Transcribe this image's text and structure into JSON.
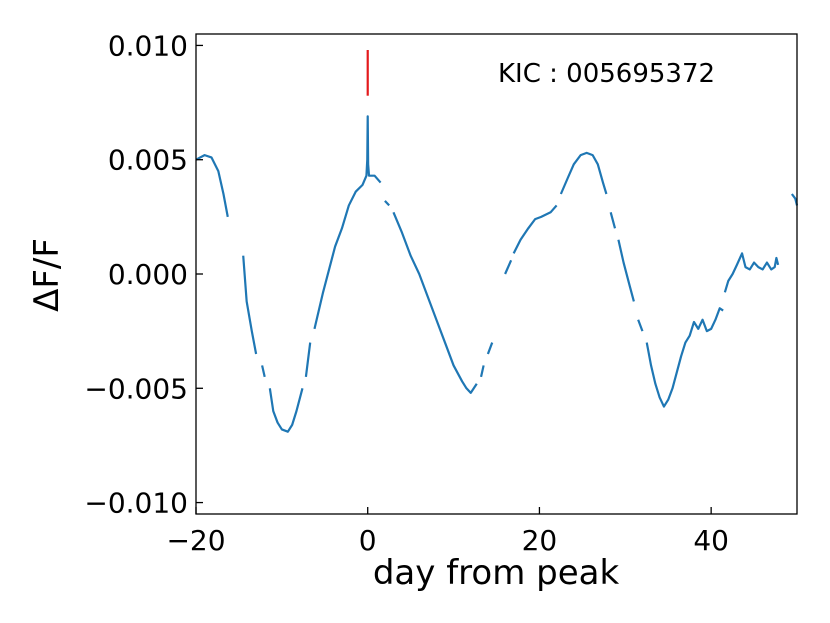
{
  "chart_data": {
    "type": "line",
    "xlabel": "day from peak",
    "ylabel": "ΔF/F",
    "xlim": [
      -20,
      50
    ],
    "ylim": [
      -0.0105,
      0.0105
    ],
    "xticks": [
      -20,
      0,
      20,
      40
    ],
    "xtick_labels": [
      "−20",
      "0",
      "20",
      "40"
    ],
    "yticks": [
      -0.01,
      -0.005,
      0.0,
      0.005,
      0.01
    ],
    "ytick_labels": [
      "−0.010",
      "−0.005",
      "0.000",
      "0.005",
      "0.010"
    ],
    "annotation": "KIC : 005695372",
    "marker": {
      "x": 0,
      "y_from": 0.0078,
      "y_to": 0.0098,
      "color": "#e41a1c"
    },
    "series": [
      {
        "color": "#1f77b4",
        "segments": [
          [
            [
              -20.0,
              0.005
            ],
            [
              -19.0,
              0.0052
            ],
            [
              -18.2,
              0.0051
            ],
            [
              -17.4,
              0.0045
            ],
            [
              -16.8,
              0.0035
            ],
            [
              -16.3,
              0.0025
            ]
          ],
          [
            [
              -14.5,
              0.0008
            ],
            [
              -14.1,
              -0.0012
            ],
            [
              -13.5,
              -0.0025
            ],
            [
              -13.0,
              -0.0035
            ]
          ],
          [
            [
              -12.3,
              -0.004
            ],
            [
              -12.0,
              -0.0045
            ]
          ],
          [
            [
              -11.4,
              -0.005
            ],
            [
              -11.0,
              -0.006
            ],
            [
              -10.5,
              -0.0065
            ],
            [
              -10.0,
              -0.0068
            ],
            [
              -9.3,
              -0.0069
            ],
            [
              -8.8,
              -0.0066
            ],
            [
              -8.3,
              -0.006
            ],
            [
              -7.6,
              -0.005
            ]
          ],
          [
            [
              -7.2,
              -0.0045
            ],
            [
              -6.7,
              -0.003
            ]
          ],
          [
            [
              -6.2,
              -0.0024
            ],
            [
              -5.2,
              -0.0008
            ],
            [
              -4.5,
              0.0002
            ],
            [
              -3.8,
              0.0012
            ],
            [
              -3.0,
              0.002
            ],
            [
              -2.2,
              0.003
            ],
            [
              -1.4,
              0.0036
            ],
            [
              -0.6,
              0.0039
            ],
            [
              -0.15,
              0.0043
            ],
            [
              -0.05,
              0.005
            ],
            [
              0.0,
              0.0069
            ],
            [
              0.05,
              0.0048
            ],
            [
              0.15,
              0.0043
            ],
            [
              0.8,
              0.0043
            ],
            [
              1.5,
              0.004
            ]
          ],
          [
            [
              2.0,
              0.0032
            ],
            [
              2.5,
              0.003
            ]
          ],
          [
            [
              3.0,
              0.0027
            ],
            [
              4.0,
              0.0018
            ],
            [
              5.0,
              0.0008
            ],
            [
              6.0,
              0.0
            ],
            [
              7.0,
              -0.001
            ],
            [
              8.0,
              -0.002
            ],
            [
              9.0,
              -0.003
            ],
            [
              10.0,
              -0.004
            ],
            [
              11.0,
              -0.0047
            ],
            [
              11.5,
              -0.005
            ],
            [
              12.0,
              -0.0052
            ],
            [
              12.7,
              -0.0048
            ]
          ],
          [
            [
              13.2,
              -0.0045
            ],
            [
              13.5,
              -0.004
            ]
          ],
          [
            [
              14.0,
              -0.0035
            ],
            [
              14.5,
              -0.003
            ]
          ],
          [
            [
              16.0,
              0.0
            ],
            [
              16.7,
              0.0006
            ]
          ],
          [
            [
              17.0,
              0.0009
            ],
            [
              17.8,
              0.0015
            ],
            [
              18.7,
              0.002
            ],
            [
              19.5,
              0.0024
            ],
            [
              20.2,
              0.0025
            ],
            [
              21.3,
              0.0027
            ],
            [
              22.0,
              0.003
            ]
          ],
          [
            [
              22.5,
              0.0035
            ],
            [
              23.3,
              0.0042
            ],
            [
              24.0,
              0.0048
            ],
            [
              24.8,
              0.0052
            ],
            [
              25.5,
              0.0053
            ],
            [
              26.2,
              0.0052
            ],
            [
              26.8,
              0.0048
            ],
            [
              27.4,
              0.004
            ],
            [
              27.8,
              0.0035
            ]
          ],
          [
            [
              28.3,
              0.0027
            ],
            [
              28.8,
              0.002
            ]
          ],
          [
            [
              29.2,
              0.0015
            ],
            [
              29.8,
              0.0005
            ],
            [
              30.5,
              -0.0005
            ],
            [
              31.0,
              -0.0012
            ]
          ],
          [
            [
              31.5,
              -0.002
            ],
            [
              32.0,
              -0.0025
            ]
          ],
          [
            [
              32.5,
              -0.003
            ],
            [
              33.0,
              -0.004
            ],
            [
              33.5,
              -0.0048
            ],
            [
              34.0,
              -0.0054
            ],
            [
              34.5,
              -0.0058
            ],
            [
              35.0,
              -0.0055
            ],
            [
              35.5,
              -0.005
            ],
            [
              36.0,
              -0.0043
            ],
            [
              36.5,
              -0.0036
            ],
            [
              37.0,
              -0.003
            ],
            [
              37.5,
              -0.0027
            ],
            [
              38.0,
              -0.0021
            ],
            [
              38.5,
              -0.0024
            ],
            [
              39.0,
              -0.002
            ],
            [
              39.5,
              -0.0025
            ],
            [
              40.0,
              -0.0024
            ],
            [
              40.5,
              -0.002
            ],
            [
              41.0,
              -0.0015
            ],
            [
              41.4,
              -0.0016
            ]
          ],
          [
            [
              41.6,
              -0.0008
            ],
            [
              42.0,
              -0.0003
            ],
            [
              42.5,
              0.0
            ],
            [
              43.0,
              0.0004
            ],
            [
              43.6,
              0.0009
            ],
            [
              44.0,
              0.0003
            ],
            [
              44.5,
              0.0002
            ],
            [
              45.0,
              0.0005
            ],
            [
              45.5,
              0.0003
            ],
            [
              46.0,
              0.0002
            ],
            [
              46.5,
              0.0005
            ],
            [
              47.0,
              0.0002
            ],
            [
              47.4,
              0.0003
            ],
            [
              47.6,
              0.0007
            ],
            [
              47.8,
              0.0004
            ]
          ],
          [
            [
              49.4,
              0.0035
            ],
            [
              49.8,
              0.0033
            ],
            [
              50.0,
              0.003
            ]
          ]
        ]
      }
    ]
  }
}
